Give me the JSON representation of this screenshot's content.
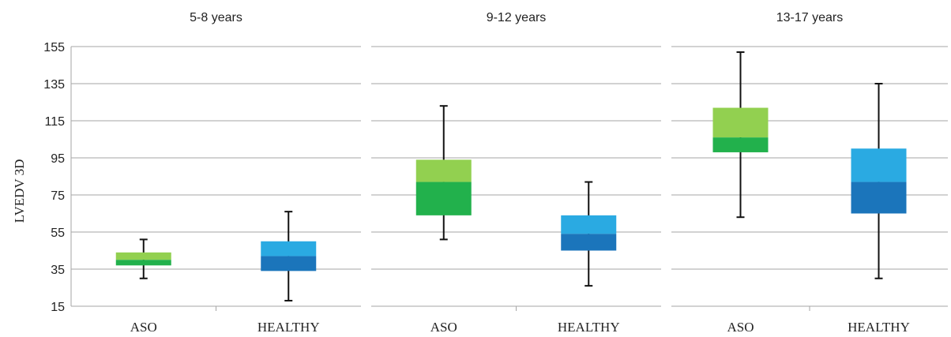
{
  "chart_data": {
    "type": "boxplot",
    "ylabel": "LVEDV 3D",
    "ylim": [
      15,
      155
    ],
    "yticks": [
      15,
      35,
      55,
      75,
      95,
      115,
      135,
      155
    ],
    "grid": true,
    "colors": {
      "ASO_upper": "#92d050",
      "ASO_lower": "#22b14c",
      "HEALTHY_upper": "#2aaae2",
      "HEALTHY_lower": "#1b75bb",
      "whisker": "#111111",
      "grid": "#a6a6a6"
    },
    "panels": [
      {
        "title": "5-8 years",
        "groups": [
          {
            "category": "ASO",
            "min": 30,
            "q1": 37,
            "median": 40,
            "q3": 44,
            "max": 51
          },
          {
            "category": "HEALTHY",
            "min": 18,
            "q1": 34,
            "median": 42,
            "q3": 50,
            "max": 66
          }
        ]
      },
      {
        "title": "9-12 years",
        "groups": [
          {
            "category": "ASO",
            "min": 51,
            "q1": 64,
            "median": 82,
            "q3": 94,
            "max": 123
          },
          {
            "category": "HEALTHY",
            "min": 26,
            "q1": 45,
            "median": 54,
            "q3": 64,
            "max": 82
          }
        ]
      },
      {
        "title": "13-17 years",
        "groups": [
          {
            "category": "ASO",
            "min": 63,
            "q1": 98,
            "median": 106,
            "q3": 122,
            "max": 152
          },
          {
            "category": "HEALTHY",
            "min": 30,
            "q1": 65,
            "median": 82,
            "q3": 100,
            "max": 135
          }
        ]
      }
    ]
  }
}
